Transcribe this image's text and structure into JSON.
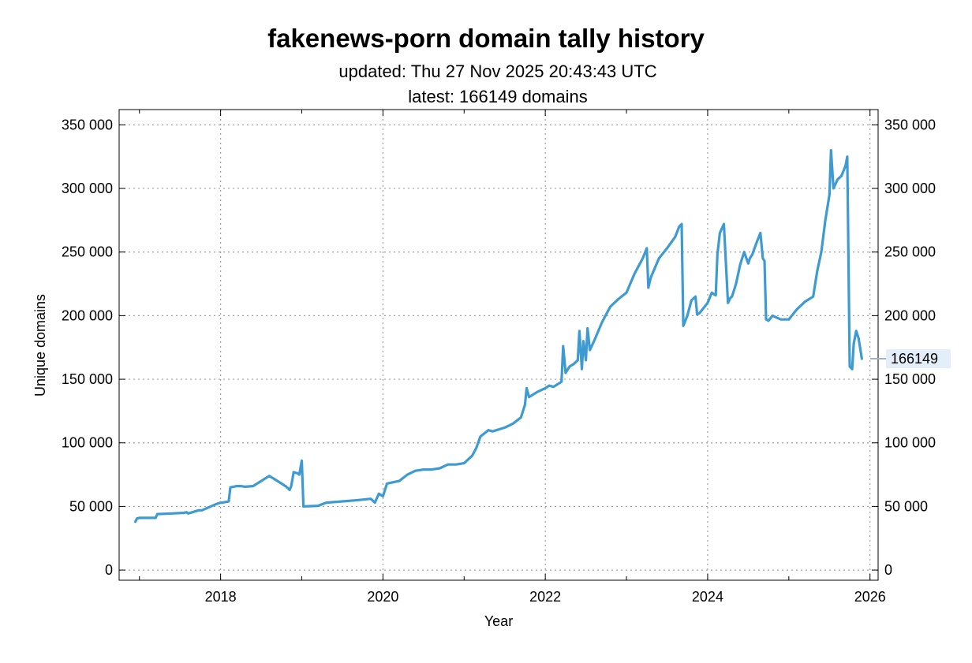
{
  "chart_data": {
    "type": "line",
    "title": "fakenews-porn domain tally history",
    "subtitle_updated": "updated: Thu 27 Nov 2025 20:43:43 UTC",
    "subtitle_latest": "latest: 166149 domains",
    "xlabel": "Year",
    "ylabel": "Unique domains",
    "xlim": [
      2016.75,
      2026.1
    ],
    "ylim": [
      -8000,
      362000
    ],
    "x_ticks": [
      2018,
      2020,
      2022,
      2024,
      2026
    ],
    "x_tick_labels": [
      "2018",
      "2020",
      "2022",
      "2024",
      "2026"
    ],
    "y_ticks": [
      0,
      50000,
      100000,
      150000,
      200000,
      250000,
      300000,
      350000
    ],
    "y_tick_labels": [
      "0",
      "50 000",
      "100 000",
      "150 000",
      "200 000",
      "250 000",
      "300 000",
      "350 000"
    ],
    "grid": true,
    "right_axis": true,
    "latest_label": "166149",
    "latest_value": 166149,
    "colors": {
      "line": "#3e9bd2",
      "grid": "#a0a0a0",
      "callout_bg": "#e3eef9",
      "callout_line": "#9fb3c8"
    },
    "series": [
      {
        "x": [
          2016.95,
          2016.97,
          2017.0,
          2017.2,
          2017.22,
          2017.4,
          2017.55,
          2017.58,
          2017.6,
          2017.73,
          2017.77,
          2017.95,
          2018.0,
          2018.02,
          2018.1,
          2018.12,
          2018.2,
          2018.25,
          2018.3,
          2018.4,
          2018.5,
          2018.6,
          2018.65,
          2018.7,
          2018.8,
          2018.85,
          2018.87,
          2018.9,
          2018.95,
          2018.97,
          2019.0,
          2019.02,
          2019.2,
          2019.3,
          2019.5,
          2019.7,
          2019.85,
          2019.9,
          2019.95,
          2020.0,
          2020.05,
          2020.2,
          2020.3,
          2020.4,
          2020.5,
          2020.6,
          2020.7,
          2020.8,
          2020.9,
          2021.0,
          2021.1,
          2021.15,
          2021.2,
          2021.3,
          2021.35,
          2021.5,
          2021.6,
          2021.7,
          2021.75,
          2021.77,
          2021.8,
          2021.9,
          2022.0,
          2022.05,
          2022.1,
          2022.15,
          2022.2,
          2022.22,
          2022.25,
          2022.3,
          2022.35,
          2022.4,
          2022.42,
          2022.45,
          2022.47,
          2022.5,
          2022.52,
          2022.55,
          2022.6,
          2022.7,
          2022.8,
          2022.9,
          2023.0,
          2023.1,
          2023.2,
          2023.25,
          2023.27,
          2023.3,
          2023.4,
          2023.5,
          2023.6,
          2023.65,
          2023.68,
          2023.7,
          2023.75,
          2023.8,
          2023.85,
          2023.87,
          2023.9,
          2024.0,
          2024.05,
          2024.1,
          2024.12,
          2024.15,
          2024.2,
          2024.25,
          2024.28,
          2024.3,
          2024.35,
          2024.4,
          2024.45,
          2024.5,
          2024.52,
          2024.55,
          2024.6,
          2024.65,
          2024.68,
          2024.7,
          2024.72,
          2024.75,
          2024.8,
          2024.9,
          2025.0,
          2025.1,
          2025.2,
          2025.3,
          2025.35,
          2025.4,
          2025.45,
          2025.5,
          2025.52,
          2025.55,
          2025.6,
          2025.65,
          2025.7,
          2025.72,
          2025.75,
          2025.78,
          2025.8,
          2025.83,
          2025.86,
          2025.9
        ],
        "y": [
          38000,
          40500,
          41000,
          41000,
          44000,
          44500,
          45000,
          45500,
          44500,
          47000,
          47000,
          52000,
          53000,
          53000,
          54000,
          65000,
          66000,
          66000,
          65500,
          66000,
          70000,
          74000,
          72000,
          70000,
          66000,
          63000,
          66000,
          77000,
          76000,
          75000,
          86000,
          50000,
          50500,
          53000,
          54000,
          55000,
          56000,
          53000,
          60000,
          58000,
          68000,
          70000,
          75000,
          78000,
          79000,
          79000,
          80000,
          83000,
          83000,
          84000,
          90000,
          96000,
          105000,
          110000,
          109000,
          112000,
          115000,
          120000,
          130000,
          143000,
          136000,
          140000,
          143000,
          145000,
          144000,
          146000,
          148000,
          176000,
          155000,
          160000,
          162000,
          165000,
          188000,
          158000,
          180000,
          165000,
          190000,
          173000,
          180000,
          195000,
          207000,
          213000,
          218000,
          233000,
          245000,
          253000,
          222000,
          230000,
          245000,
          253000,
          262000,
          270000,
          272000,
          192000,
          200000,
          212000,
          215000,
          201000,
          202000,
          210000,
          218000,
          216000,
          248000,
          265000,
          272000,
          210000,
          214000,
          215000,
          225000,
          240000,
          250000,
          241000,
          245000,
          248000,
          257000,
          265000,
          245000,
          243000,
          197000,
          196000,
          200000,
          197000,
          197000,
          205000,
          211000,
          215000,
          235000,
          250000,
          275000,
          295000,
          330000,
          300000,
          307000,
          310000,
          318000,
          325000,
          160000,
          158000,
          178000,
          188000,
          182000,
          166149
        ]
      }
    ]
  }
}
